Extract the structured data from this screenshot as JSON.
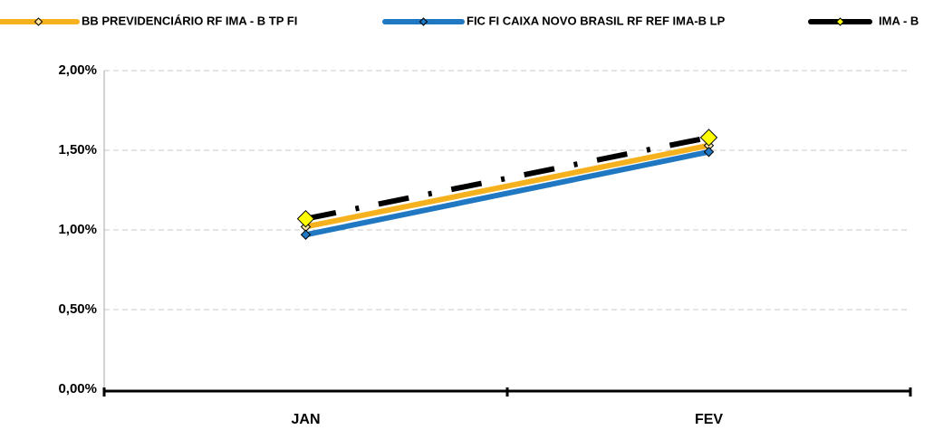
{
  "chart_data": {
    "type": "line",
    "categories": [
      "JAN",
      "FEV"
    ],
    "series": [
      {
        "name": "BB PREVIDENCIÁRIO RF IMA - B TP FI",
        "color": "#f5b21e",
        "marker_color": "#fde7a6",
        "values": [
          1.02,
          1.53
        ]
      },
      {
        "name": "FIC FI CAIXA NOVO BRASIL RF REF IMA-B LP",
        "color": "#1f78c1",
        "marker_color": "#1f78c1",
        "values": [
          0.97,
          1.49
        ]
      },
      {
        "name": "IMA - B",
        "color": "#000000",
        "marker_color": "#ffff00",
        "line_style": "dash-dot",
        "values": [
          1.07,
          1.58
        ]
      }
    ],
    "ylim": [
      0,
      2
    ],
    "yticks": [
      {
        "value": 0,
        "label": "0,00%"
      },
      {
        "value": 0.5,
        "label": "0,50%"
      },
      {
        "value": 1,
        "label": "1,00%"
      },
      {
        "value": 1.5,
        "label": "1,50%"
      },
      {
        "value": 2,
        "label": "2,00%"
      }
    ],
    "grid": true,
    "legend": "top"
  }
}
